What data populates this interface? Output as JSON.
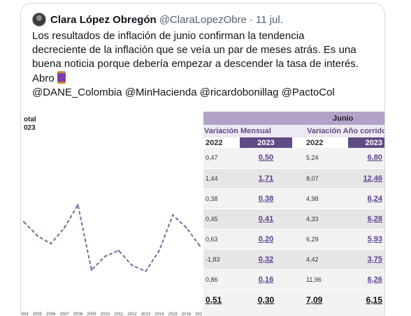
{
  "tweet": {
    "author_name": "Clara López Obregón",
    "author_handle": "@ClaraLopezObre",
    "separator": "·",
    "date": "11 jul.",
    "text_lines": [
      "Los resultados de inflación de junio confirman la tendencia",
      "decreciente de la inflación que se veía un par de meses atrás. Es una",
      "buena noticia porque debería empezar a descender la tasa de interés.",
      "Abro"
    ],
    "mentions": "@DANE_Colombia @MinHacienda @ricardobonillag @PactoCol"
  },
  "media": {
    "chart": {
      "title_partial": "otal",
      "subtitle_partial": "023"
    },
    "table": {
      "month_header": "Junio",
      "group_headers": [
        "Variación Mensual",
        "Variación Año corrido"
      ],
      "year_headers": [
        "2022",
        "2023",
        "2022",
        "2023"
      ],
      "rows": [
        [
          "0,47",
          "0,50",
          "5,24",
          "6,80"
        ],
        [
          "1,44",
          "1,71",
          "8,07",
          "12,46"
        ],
        [
          "0,38",
          "0,38",
          "4,98",
          "6,24"
        ],
        [
          "0,45",
          "0,41",
          "4,33",
          "6,28"
        ],
        [
          "0,63",
          "0,20",
          "6,29",
          "5,93"
        ],
        [
          "-1,83",
          "0,32",
          "4,42",
          "3,75"
        ],
        [
          "0,86",
          "0,16",
          "11,96",
          "6,26"
        ]
      ],
      "total_row": [
        "0,51",
        "0,30",
        "7,09",
        "6,15"
      ]
    }
  },
  "chart_data": {
    "type": "line",
    "title": "otal",
    "subtitle": "023",
    "x": [
      "2004",
      "2005",
      "2006",
      "2007",
      "2008",
      "2009",
      "2010",
      "2011",
      "2012",
      "2013",
      "2014",
      "2015",
      "2016",
      "2017"
    ],
    "series": [
      {
        "values": [
          6.2,
          5.0,
          4.3,
          5.7,
          7.7,
          2.0,
          3.2,
          3.7,
          2.4,
          1.9,
          3.7,
          6.8,
          5.7,
          4.1
        ],
        "color": "#7b6a9c",
        "style": "dashed"
      }
    ],
    "ylim": [
      0,
      14
    ],
    "grid": false
  }
}
